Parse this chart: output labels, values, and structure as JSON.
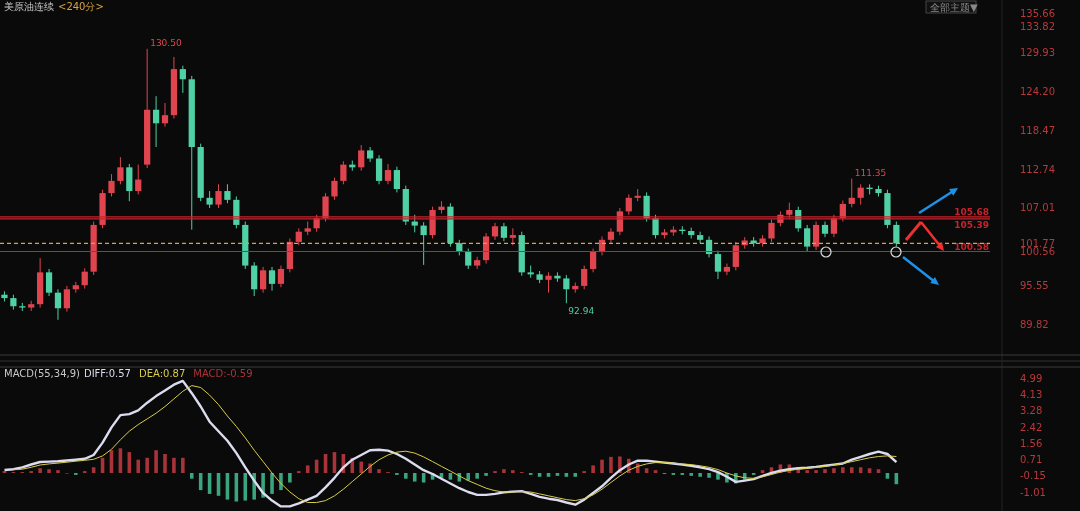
{
  "chart_data": [
    {
      "type": "candlestick",
      "title": "美原油连续",
      "subtitle": "<240分>",
      "categories": [
        null,
        null,
        null,
        null,
        null,
        null,
        null,
        null,
        null,
        null,
        null,
        null,
        null,
        null,
        null,
        null,
        null,
        null,
        null,
        null,
        null,
        null,
        null,
        null,
        null,
        null,
        null,
        null,
        null,
        null,
        null,
        null,
        null,
        null,
        null,
        null,
        null,
        null,
        null,
        null,
        null,
        null,
        null,
        null,
        null,
        null,
        null,
        null,
        null,
        null,
        null,
        null,
        null,
        null,
        null,
        null,
        null,
        null,
        null,
        null,
        null,
        null,
        null,
        null,
        null,
        null,
        null,
        null,
        null,
        null,
        null,
        null,
        null,
        null,
        null,
        null,
        null,
        null,
        null,
        null,
        null,
        null,
        null,
        null,
        null,
        null,
        null,
        null,
        null,
        null,
        null,
        null,
        null,
        null,
        null,
        null,
        null,
        null,
        null,
        null,
        null,
        null,
        null,
        null,
        null,
        null,
        null,
        null,
        null,
        null,
        null
      ],
      "ohlc": [
        [
          94.2,
          94.7,
          93.2,
          93.7
        ],
        [
          93.7,
          94.2,
          92.0,
          92.5
        ],
        [
          92.5,
          93.0,
          91.8,
          92.3
        ],
        [
          92.3,
          93.3,
          91.8,
          92.8
        ],
        [
          92.8,
          99.6,
          92.3,
          97.5
        ],
        [
          97.5,
          98.0,
          94.0,
          94.5
        ],
        [
          94.5,
          95.0,
          90.5,
          92.2
        ],
        [
          92.2,
          95.5,
          91.7,
          95.0
        ],
        [
          95.0,
          96.1,
          94.5,
          95.6
        ],
        [
          95.6,
          98.1,
          95.1,
          97.6
        ],
        [
          97.6,
          105.0,
          97.1,
          104.5
        ],
        [
          104.5,
          109.7,
          104.0,
          109.2
        ],
        [
          109.2,
          112.0,
          108.7,
          111.0
        ],
        [
          111.0,
          114.5,
          110.5,
          113.0
        ],
        [
          113.0,
          113.5,
          108.0,
          109.5
        ],
        [
          109.5,
          113.4,
          109.0,
          111.2
        ],
        [
          113.4,
          130.5,
          112.9,
          121.5
        ],
        [
          121.5,
          123.5,
          116.0,
          119.5
        ],
        [
          119.5,
          122.5,
          119.0,
          120.7
        ],
        [
          120.7,
          129.3,
          120.2,
          127.5
        ],
        [
          127.5,
          128.0,
          124.0,
          126.0
        ],
        [
          126.0,
          126.5,
          103.8,
          116.0
        ],
        [
          116.0,
          116.5,
          108.0,
          108.5
        ],
        [
          108.5,
          109.5,
          107.0,
          107.5
        ],
        [
          107.5,
          110.5,
          107.0,
          109.5
        ],
        [
          109.5,
          110.5,
          107.7,
          108.2
        ],
        [
          108.2,
          108.7,
          104.0,
          104.5
        ],
        [
          104.5,
          105.0,
          98.0,
          98.5
        ],
        [
          98.5,
          99.0,
          94.0,
          95.0
        ],
        [
          95.0,
          98.3,
          94.5,
          97.8
        ],
        [
          97.8,
          98.3,
          94.8,
          95.8
        ],
        [
          95.8,
          98.5,
          95.3,
          98.0
        ],
        [
          98.0,
          102.5,
          97.5,
          102.0
        ],
        [
          102.0,
          104.0,
          101.5,
          103.5
        ],
        [
          103.5,
          105.0,
          103.0,
          104.0
        ],
        [
          104.0,
          106.0,
          103.5,
          105.5
        ],
        [
          105.5,
          109.2,
          105.0,
          108.7
        ],
        [
          108.7,
          111.5,
          108.2,
          111.0
        ],
        [
          111.0,
          113.9,
          110.5,
          113.4
        ],
        [
          113.4,
          114.0,
          112.5,
          113.0
        ],
        [
          113.0,
          116.3,
          112.5,
          115.5
        ],
        [
          115.5,
          116.0,
          113.8,
          114.3
        ],
        [
          114.3,
          114.8,
          110.5,
          111.0
        ],
        [
          111.0,
          113.5,
          110.5,
          112.6
        ],
        [
          112.6,
          113.1,
          109.3,
          109.8
        ],
        [
          109.8,
          110.3,
          104.5,
          105.0
        ],
        [
          105.0,
          106.0,
          103.4,
          104.4
        ],
        [
          104.4,
          104.9,
          98.6,
          103.0
        ],
        [
          103.0,
          107.2,
          102.5,
          106.7
        ],
        [
          106.7,
          108.0,
          106.2,
          107.2
        ],
        [
          107.2,
          107.7,
          101.3,
          101.8
        ],
        [
          101.8,
          102.3,
          100.0,
          100.5
        ],
        [
          100.5,
          101.0,
          98.0,
          98.5
        ],
        [
          98.5,
          99.8,
          98.0,
          99.3
        ],
        [
          99.3,
          103.3,
          98.8,
          102.8
        ],
        [
          102.8,
          104.8,
          102.3,
          104.3
        ],
        [
          104.3,
          104.8,
          102.1,
          102.6
        ],
        [
          102.6,
          104.0,
          101.5,
          103.0
        ],
        [
          103.0,
          103.5,
          97.0,
          97.5
        ],
        [
          97.5,
          98.5,
          96.7,
          97.2
        ],
        [
          97.2,
          97.7,
          95.9,
          96.4
        ],
        [
          96.4,
          97.5,
          94.5,
          97.0
        ],
        [
          97.0,
          97.5,
          96.1,
          96.6
        ],
        [
          96.6,
          97.1,
          92.94,
          95.0
        ],
        [
          95.0,
          96.0,
          94.5,
          95.5
        ],
        [
          95.5,
          98.5,
          95.0,
          98.0
        ],
        [
          98.0,
          101.0,
          97.5,
          100.5
        ],
        [
          100.5,
          102.8,
          100.0,
          102.3
        ],
        [
          102.3,
          104.0,
          101.8,
          103.5
        ],
        [
          103.5,
          107.0,
          103.0,
          106.5
        ],
        [
          106.5,
          109.0,
          106.0,
          108.5
        ],
        [
          108.5,
          109.8,
          108.0,
          108.8
        ],
        [
          108.8,
          109.3,
          105.0,
          105.5
        ],
        [
          105.5,
          106.0,
          102.5,
          103.0
        ],
        [
          103.0,
          103.9,
          102.5,
          103.4
        ],
        [
          103.4,
          104.3,
          102.9,
          103.8
        ],
        [
          103.8,
          104.3,
          103.1,
          103.6
        ],
        [
          103.6,
          104.1,
          102.5,
          103.0
        ],
        [
          103.0,
          103.5,
          101.8,
          102.3
        ],
        [
          102.3,
          102.8,
          99.7,
          100.2
        ],
        [
          100.2,
          100.7,
          96.5,
          97.6
        ],
        [
          97.6,
          98.8,
          97.1,
          98.3
        ],
        [
          98.3,
          102.0,
          97.8,
          101.5
        ],
        [
          101.5,
          102.7,
          101.0,
          102.2
        ],
        [
          102.2,
          102.7,
          101.3,
          101.8
        ],
        [
          101.8,
          103.0,
          101.3,
          102.5
        ],
        [
          102.5,
          105.3,
          102.0,
          104.8
        ],
        [
          104.8,
          106.5,
          104.3,
          106.0
        ],
        [
          106.0,
          107.8,
          105.5,
          106.7
        ],
        [
          106.7,
          107.2,
          103.5,
          104.0
        ],
        [
          104.0,
          104.5,
          100.5,
          101.3
        ],
        [
          101.3,
          105.0,
          100.8,
          104.5
        ],
        [
          104.5,
          105.0,
          102.7,
          103.2
        ],
        [
          103.2,
          106.0,
          102.7,
          105.5
        ],
        [
          105.5,
          108.1,
          105.0,
          107.6
        ],
        [
          107.6,
          111.35,
          107.1,
          108.5
        ],
        [
          108.5,
          110.5,
          107.5,
          110.0
        ],
        [
          110.0,
          110.5,
          109.0,
          109.8
        ],
        [
          109.8,
          110.3,
          108.7,
          109.2
        ],
        [
          109.2,
          109.7,
          104.0,
          104.5
        ],
        [
          104.5,
          105.0,
          101.3,
          101.77
        ],
        null,
        null,
        null,
        null,
        null,
        null,
        null,
        null,
        null,
        null
      ],
      "ylim": [
        85.3,
        137.7
      ],
      "yticks": [
        135.66,
        133.82,
        129.93,
        {
          "value": 124.2,
          "label": "124.20"
        },
        118.47,
        112.74,
        107.01,
        101.77,
        100.56,
        95.55,
        89.82
      ],
      "ref_lines": [
        {
          "axis": "y",
          "value": 105.68,
          "label": "105.68",
          "color": "#c8232c"
        },
        {
          "axis": "y",
          "value": 105.39,
          "label": "105.39",
          "color": "#c8232c"
        },
        {
          "axis": "y",
          "value": 100.58,
          "label": "100.58",
          "color": "#c8232c"
        },
        {
          "axis": "y",
          "value": 101.77,
          "color": "#d9a441",
          "line_style": "dashed"
        }
      ],
      "annotations": [
        "130.50",
        "92.94",
        "111.35",
        "全部主题▼"
      ]
    },
    {
      "type": "bar",
      "title": "MACD(55,34,9)",
      "legend": "top left",
      "categories": [
        null,
        null,
        null,
        null,
        null,
        null,
        null,
        null,
        null,
        null,
        null,
        null,
        null,
        null,
        null,
        null,
        null,
        null,
        null,
        null,
        null,
        null,
        null,
        null,
        null,
        null,
        null,
        null,
        null,
        null,
        null,
        null,
        null,
        null,
        null,
        null,
        null,
        null,
        null,
        null,
        null,
        null,
        null,
        null,
        null,
        null,
        null,
        null,
        null,
        null,
        null,
        null,
        null,
        null,
        null,
        null,
        null,
        null,
        null,
        null,
        null,
        null,
        null,
        null,
        null,
        null,
        null,
        null,
        null,
        null,
        null,
        null,
        null,
        null,
        null,
        null,
        null,
        null,
        null,
        null,
        null,
        null,
        null,
        null,
        null,
        null,
        null,
        null,
        null,
        null,
        null,
        null,
        null,
        null,
        null,
        null,
        null,
        null,
        null,
        null,
        null,
        null,
        null,
        null,
        null,
        null,
        null,
        null,
        null,
        null,
        null
      ],
      "ylim": [
        -2.0,
        5.58
      ],
      "yticks": [
        4.99,
        4.13,
        3.28,
        2.42,
        1.56,
        0.71,
        -0.15,
        -1.01
      ],
      "series": [
        {
          "name": "MACD:-0.59",
          "type": "bar",
          "colors": [
            "#a8343a",
            "#a8343a",
            "#a8343a",
            "#a8343a",
            "#a8343a",
            "#a8343a",
            "#a8343a",
            "#a8343a",
            "#3aa57f",
            "#a8343a",
            "#a8343a",
            "#a8343a",
            "#a8343a",
            "#a8343a",
            "#a8343a",
            "#a8343a",
            "#a8343a",
            "#a8343a",
            "#a8343a",
            "#a8343a",
            "#a8343a",
            "#3aa57f",
            "#3aa57f",
            "#3aa57f",
            "#3aa57f",
            "#3aa57f",
            "#3aa57f",
            "#3aa57f",
            "#3aa57f",
            "#3aa57f",
            "#3aa57f",
            "#3aa57f",
            "#3aa57f",
            "#a8343a",
            "#a8343a",
            "#a8343a",
            "#a8343a",
            "#a8343a",
            "#a8343a",
            "#a8343a",
            "#a8343a",
            "#a8343a",
            "#a8343a",
            "#a8343a",
            "#3aa57f",
            "#3aa57f",
            "#3aa57f",
            "#3aa57f",
            "#3aa57f",
            "#3aa57f",
            "#3aa57f",
            "#3aa57f",
            "#3aa57f",
            "#3aa57f",
            "#3aa57f",
            "#a8343a",
            "#a8343a",
            "#a8343a",
            "#a8343a",
            "#3aa57f",
            "#3aa57f",
            "#3aa57f",
            "#3aa57f",
            "#3aa57f",
            "#3aa57f",
            "#a8343a",
            "#a8343a",
            "#a8343a",
            "#a8343a",
            "#a8343a",
            "#a8343a",
            "#a8343a",
            "#a8343a",
            "#a8343a",
            "#3aa57f",
            "#3aa57f",
            "#3aa57f",
            "#3aa57f",
            "#3aa57f",
            "#3aa57f",
            "#3aa57f",
            "#3aa57f",
            "#3aa57f",
            "#3aa57f",
            "#3aa57f",
            "#a8343a",
            "#a8343a",
            "#a8343a",
            "#a8343a",
            "#a8343a",
            "#a8343a",
            "#a8343a",
            "#a8343a",
            "#a8343a",
            "#a8343a",
            "#a8343a",
            "#a8343a",
            "#a8343a",
            "#a8343a",
            "#3aa57f",
            "#3aa57f",
            null,
            null,
            null,
            null,
            null,
            null,
            null,
            null,
            null,
            null
          ],
          "values": [
            0.1,
            0.05,
            0.05,
            0.1,
            0.25,
            0.2,
            0.15,
            0.0,
            -0.1,
            0.1,
            0.3,
            0.8,
            1.2,
            1.3,
            1.1,
            0.7,
            0.8,
            1.2,
            1.0,
            0.8,
            0.8,
            -0.3,
            -0.9,
            -1.1,
            -1.2,
            -1.4,
            -1.5,
            -1.45,
            -1.4,
            -1.3,
            -1.1,
            -0.9,
            -0.5,
            0.1,
            0.4,
            0.7,
            1.0,
            1.1,
            1.0,
            0.8,
            0.6,
            0.5,
            0.2,
            0.05,
            -0.1,
            -0.3,
            -0.45,
            -0.5,
            -0.35,
            -0.25,
            -0.35,
            -0.45,
            -0.4,
            -0.3,
            -0.15,
            0.1,
            0.2,
            0.15,
            0.05,
            -0.1,
            -0.2,
            -0.2,
            -0.15,
            -0.2,
            -0.2,
            0.1,
            0.4,
            0.7,
            0.85,
            0.87,
            0.75,
            0.5,
            0.25,
            0.15,
            -0.05,
            -0.1,
            -0.1,
            -0.15,
            -0.2,
            -0.25,
            -0.35,
            -0.5,
            -0.55,
            -0.35,
            -0.1,
            0.15,
            0.3,
            0.45,
            0.45,
            0.3,
            0.15,
            0.15,
            0.2,
            0.25,
            0.3,
            0.3,
            0.3,
            0.25,
            0.2,
            -0.3,
            -0.59,
            null,
            null,
            null,
            null,
            null,
            null,
            null,
            null,
            null,
            null
          ]
        },
        {
          "name": "DIFF:0.57",
          "type": "line",
          "color": "#dcdcf0",
          "values": [
            0.16,
            0.2,
            0.3,
            0.45,
            0.58,
            0.6,
            0.62,
            0.66,
            0.7,
            0.75,
            0.95,
            1.6,
            2.4,
            3.05,
            3.1,
            3.3,
            3.7,
            4.05,
            4.35,
            4.65,
            4.85,
            4.2,
            3.5,
            2.7,
            2.2,
            1.7,
            1.05,
            0.3,
            -0.4,
            -1.05,
            -1.45,
            -1.76,
            -1.76,
            -1.6,
            -1.4,
            -1.2,
            -0.75,
            -0.25,
            0.3,
            0.7,
            0.95,
            1.2,
            1.22,
            1.18,
            1.0,
            0.75,
            0.45,
            0.15,
            -0.05,
            -0.3,
            -0.55,
            -0.8,
            -1.0,
            -1.15,
            -1.15,
            -1.1,
            -1.02,
            -0.98,
            -0.95,
            -1.1,
            -1.25,
            -1.35,
            -1.42,
            -1.55,
            -1.67,
            -1.4,
            -1.05,
            -0.7,
            -0.25,
            0.15,
            0.45,
            0.65,
            0.65,
            0.6,
            0.55,
            0.5,
            0.44,
            0.38,
            0.3,
            0.2,
            0.05,
            -0.2,
            -0.47,
            -0.4,
            -0.32,
            -0.15,
            0.0,
            0.12,
            0.2,
            0.25,
            0.28,
            0.32,
            0.38,
            0.44,
            0.5,
            0.7,
            0.85,
            1.0,
            1.12,
            1.0,
            0.57,
            null,
            null,
            null,
            null,
            null,
            null,
            null,
            null,
            null,
            null
          ]
        },
        {
          "name": "DEA:0.87",
          "type": "line",
          "color": "#d8cc48",
          "values": [
            null,
            0.17,
            0.2,
            0.3,
            0.42,
            0.48,
            0.52,
            0.57,
            0.62,
            0.67,
            0.72,
            0.9,
            1.25,
            1.75,
            2.2,
            2.55,
            2.85,
            3.15,
            3.5,
            3.9,
            4.3,
            4.6,
            4.5,
            4.1,
            3.6,
            3.0,
            2.45,
            1.85,
            1.2,
            0.6,
            0.0,
            -0.55,
            -1.0,
            -1.35,
            -1.55,
            -1.55,
            -1.45,
            -1.2,
            -0.85,
            -0.45,
            -0.05,
            0.35,
            0.7,
            0.95,
            1.1,
            1.15,
            1.05,
            0.85,
            0.6,
            0.35,
            0.1,
            -0.15,
            -0.4,
            -0.6,
            -0.8,
            -0.93,
            -1.0,
            -1.0,
            -0.98,
            -1.0,
            -1.1,
            -1.2,
            -1.3,
            -1.4,
            -1.45,
            -1.35,
            -1.15,
            -0.85,
            -0.5,
            -0.15,
            0.15,
            0.35,
            0.48,
            0.55,
            0.55,
            0.52,
            0.48,
            0.44,
            0.38,
            0.3,
            0.18,
            0.0,
            -0.15,
            -0.25,
            -0.28,
            -0.2,
            -0.08,
            0.05,
            0.13,
            0.2,
            0.25,
            0.3,
            0.35,
            0.42,
            0.5,
            0.6,
            0.7,
            0.8,
            0.87,
            0.9,
            0.87,
            null,
            null,
            null,
            null,
            null,
            null,
            null,
            null,
            null,
            null
          ]
        }
      ]
    }
  ]
}
